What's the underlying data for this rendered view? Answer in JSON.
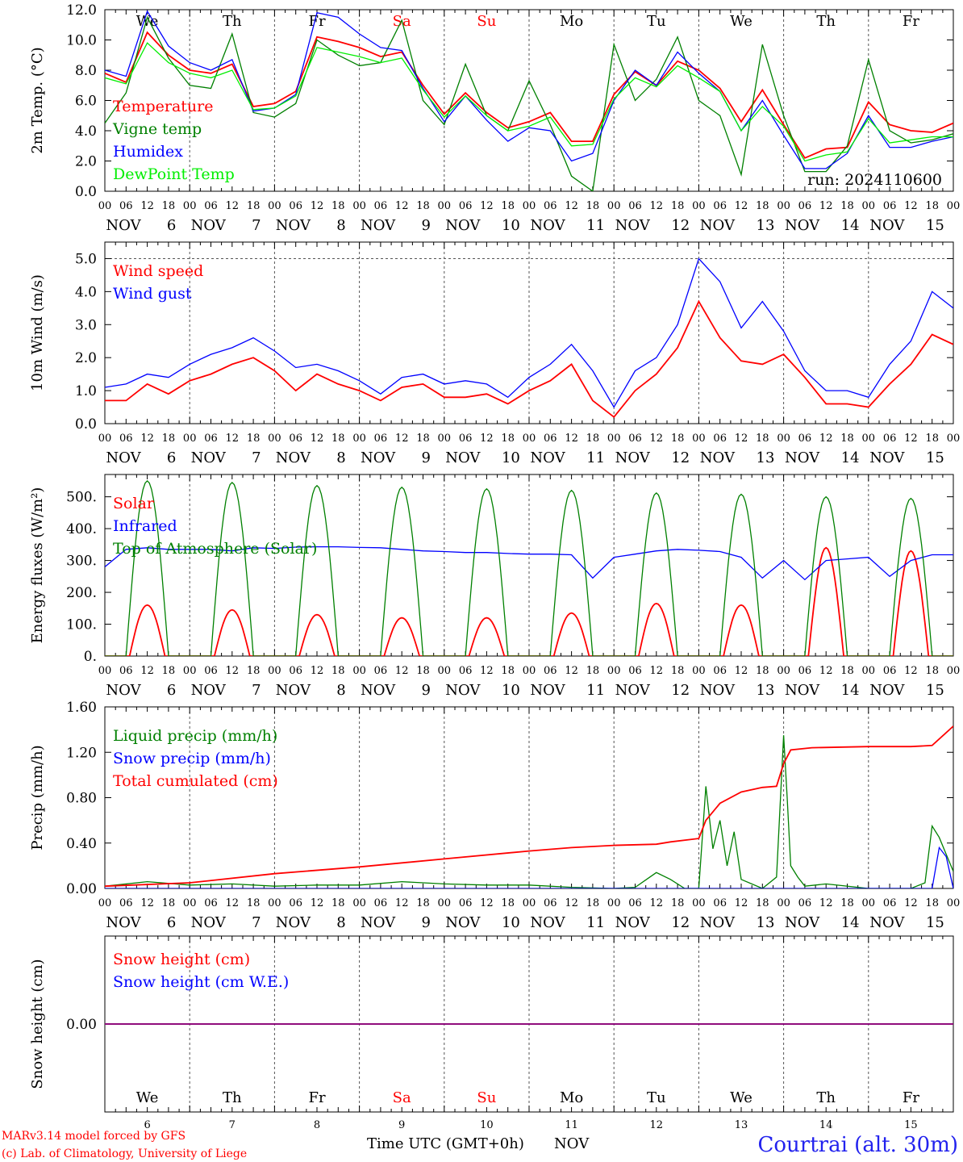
{
  "figure": {
    "credit_line1": "MARv3.14 model forced by GFS",
    "credit_line2": "(c) Lab. of Climatology, University of Liege",
    "time_axis_label": "Time UTC (GMT+0h)",
    "month_label": "NOV",
    "station": "Courtrai (alt. 30m)",
    "run_label": "run: 2024110600",
    "colors": {
      "red": "#ff0000",
      "green": "#008000",
      "blue": "#0000ff",
      "lightgreen": "#00ee00",
      "purple": "#800080",
      "grid": "#555555"
    }
  },
  "hour_ticks": [
    "00",
    "06",
    "12",
    "18"
  ],
  "end_tick": "00",
  "days": [
    {
      "num": "6",
      "dow": "We",
      "weekend": false
    },
    {
      "num": "7",
      "dow": "Th",
      "weekend": false
    },
    {
      "num": "8",
      "dow": "Fr",
      "weekend": false
    },
    {
      "num": "9",
      "dow": "Sa",
      "weekend": true
    },
    {
      "num": "10",
      "dow": "Su",
      "weekend": true
    },
    {
      "num": "11",
      "dow": "Mo",
      "weekend": false
    },
    {
      "num": "12",
      "dow": "Tu",
      "weekend": false
    },
    {
      "num": "13",
      "dow": "We",
      "weekend": false
    },
    {
      "num": "14",
      "dow": "Th",
      "weekend": false
    },
    {
      "num": "15",
      "dow": "Fr",
      "weekend": false
    }
  ],
  "chart_data": [
    {
      "type": "line",
      "ylabel": "2m Temp. (°C)",
      "ylim": [
        0,
        12
      ],
      "yticks": [
        "0.0",
        "2.0",
        "4.0",
        "6.0",
        "8.0",
        "10.0",
        "12.0"
      ],
      "x_unit": "hours since Nov 6 00 UTC",
      "show_day_names": true,
      "series": [
        {
          "name": "Temperature",
          "color": "red",
          "x": [
            0,
            6,
            12,
            18,
            24,
            30,
            36,
            42,
            48,
            54,
            60,
            66,
            72,
            78,
            84,
            90,
            96,
            102,
            108,
            114,
            120,
            126,
            132,
            138,
            144,
            150,
            156,
            162,
            168,
            174,
            180,
            186,
            192,
            198,
            204,
            210,
            216,
            222,
            228,
            234,
            240
          ],
          "y": [
            7.8,
            7.2,
            10.5,
            9.0,
            8.0,
            7.8,
            8.4,
            5.6,
            5.8,
            6.6,
            10.2,
            9.9,
            9.5,
            8.9,
            9.2,
            7.0,
            5.1,
            6.5,
            5.2,
            4.2,
            4.6,
            5.2,
            3.3,
            3.3,
            6.4,
            7.9,
            7.0,
            8.6,
            8.0,
            6.8,
            4.6,
            6.7,
            4.4,
            2.2,
            2.8,
            2.9,
            5.9,
            4.4,
            4.0,
            3.9,
            4.5
          ]
        },
        {
          "name": "Vigne temp",
          "color": "green",
          "x": [
            0,
            6,
            12,
            18,
            24,
            30,
            36,
            42,
            48,
            54,
            60,
            66,
            72,
            78,
            84,
            90,
            96,
            102,
            108,
            114,
            120,
            126,
            132,
            138,
            144,
            150,
            156,
            162,
            168,
            174,
            180,
            186,
            192,
            198,
            204,
            210,
            216,
            222,
            228,
            234,
            240
          ],
          "y": [
            4.5,
            6.5,
            11.5,
            8.8,
            7.0,
            6.8,
            10.4,
            5.2,
            4.9,
            5.8,
            10.0,
            9.0,
            8.3,
            8.5,
            11.3,
            6.0,
            4.4,
            8.4,
            5.0,
            4.0,
            7.3,
            4.4,
            1.0,
            0.0,
            9.7,
            6.0,
            7.4,
            10.2,
            6.0,
            5.0,
            1.1,
            9.7,
            5.0,
            1.3,
            1.3,
            3.0,
            8.7,
            4.0,
            3.2,
            3.4,
            3.8
          ]
        },
        {
          "name": "Humidex",
          "color": "blue",
          "x": [
            0,
            6,
            12,
            18,
            24,
            30,
            36,
            42,
            48,
            54,
            60,
            66,
            72,
            78,
            84,
            90,
            96,
            102,
            108,
            114,
            120,
            126,
            132,
            138,
            144,
            150,
            156,
            162,
            168,
            174,
            180,
            186,
            192,
            198,
            204,
            210,
            216,
            222,
            228,
            234,
            240
          ],
          "y": [
            8.0,
            7.6,
            11.9,
            9.6,
            8.5,
            8.0,
            8.7,
            5.3,
            5.5,
            6.4,
            11.8,
            11.5,
            10.4,
            9.5,
            9.3,
            6.8,
            4.6,
            6.3,
            4.7,
            3.3,
            4.2,
            4.0,
            2.0,
            2.5,
            6.0,
            8.0,
            7.0,
            9.2,
            7.8,
            6.6,
            4.0,
            6.0,
            3.7,
            1.5,
            1.5,
            2.5,
            5.0,
            2.9,
            2.9,
            3.3,
            3.6
          ]
        },
        {
          "name": "DewPoint Temp",
          "color": "lightgreen",
          "x": [
            0,
            6,
            12,
            18,
            24,
            30,
            36,
            42,
            48,
            54,
            60,
            66,
            72,
            78,
            84,
            90,
            96,
            102,
            108,
            114,
            120,
            126,
            132,
            138,
            144,
            150,
            156,
            162,
            168,
            174,
            180,
            186,
            192,
            198,
            204,
            210,
            216,
            222,
            228,
            234,
            240
          ],
          "y": [
            7.5,
            7.1,
            9.8,
            8.5,
            7.8,
            7.5,
            8.0,
            5.4,
            5.5,
            6.3,
            9.5,
            9.2,
            8.9,
            8.5,
            8.8,
            6.7,
            4.9,
            6.3,
            5.0,
            4.0,
            4.3,
            4.9,
            3.0,
            3.1,
            6.1,
            7.5,
            6.9,
            8.3,
            7.5,
            6.6,
            4.0,
            5.6,
            4.3,
            2.0,
            2.4,
            2.6,
            4.8,
            3.2,
            3.4,
            3.6,
            3.6
          ]
        }
      ]
    },
    {
      "type": "line",
      "ylabel": "10m Wind (m/s)",
      "ylim": [
        0,
        5.5
      ],
      "yticks": [
        "0.0",
        "1.0",
        "2.0",
        "3.0",
        "4.0",
        "5.0"
      ],
      "ref_line": 5.0,
      "show_day_names": false,
      "series": [
        {
          "name": "Wind speed",
          "color": "red",
          "x": [
            0,
            6,
            12,
            18,
            24,
            30,
            36,
            42,
            48,
            54,
            60,
            66,
            72,
            78,
            84,
            90,
            96,
            102,
            108,
            114,
            120,
            126,
            132,
            138,
            144,
            150,
            156,
            162,
            168,
            174,
            180,
            186,
            192,
            198,
            204,
            210,
            216,
            222,
            228,
            234,
            240
          ],
          "y": [
            0.7,
            0.7,
            1.2,
            0.9,
            1.3,
            1.5,
            1.8,
            2.0,
            1.6,
            1.0,
            1.5,
            1.2,
            1.0,
            0.7,
            1.1,
            1.2,
            0.8,
            0.8,
            0.9,
            0.6,
            1.0,
            1.3,
            1.8,
            0.7,
            0.2,
            1.0,
            1.5,
            2.3,
            3.7,
            2.6,
            1.9,
            1.8,
            2.1,
            1.4,
            0.6,
            0.6,
            0.5,
            1.2,
            1.8,
            2.7,
            2.4
          ]
        },
        {
          "name": "Wind gust",
          "color": "blue",
          "x": [
            0,
            6,
            12,
            18,
            24,
            30,
            36,
            42,
            48,
            54,
            60,
            66,
            72,
            78,
            84,
            90,
            96,
            102,
            108,
            114,
            120,
            126,
            132,
            138,
            144,
            150,
            156,
            162,
            168,
            174,
            180,
            186,
            192,
            198,
            204,
            210,
            216,
            222,
            228,
            234,
            240
          ],
          "y": [
            1.1,
            1.2,
            1.5,
            1.4,
            1.8,
            2.1,
            2.3,
            2.6,
            2.2,
            1.7,
            1.8,
            1.6,
            1.3,
            0.9,
            1.4,
            1.5,
            1.2,
            1.3,
            1.2,
            0.8,
            1.4,
            1.8,
            2.4,
            1.6,
            0.5,
            1.6,
            2.0,
            3.0,
            5.0,
            4.3,
            2.9,
            3.7,
            2.8,
            1.6,
            1.0,
            1.0,
            0.8,
            1.8,
            2.5,
            4.0,
            3.5
          ]
        }
      ]
    },
    {
      "type": "line",
      "ylabel": "Energy fluxes (W/m²)",
      "ylim": [
        0,
        570
      ],
      "yticks": [
        "0.",
        "100.",
        "200.",
        "300.",
        "400.",
        "500."
      ],
      "ytick_values": [
        0,
        100,
        200,
        300,
        400,
        500
      ],
      "show_day_names": false,
      "series": [
        {
          "name": "Solar",
          "color": "red",
          "shape": "daily_peak",
          "day_start_hour": 7,
          "day_end_hour": 17,
          "peaks": [
            160,
            145,
            130,
            120,
            120,
            135,
            165,
            160,
            340,
            330
          ]
        },
        {
          "name": "Infrared",
          "color": "blue",
          "x": [
            0,
            6,
            12,
            18,
            24,
            30,
            36,
            42,
            48,
            54,
            60,
            66,
            72,
            78,
            84,
            90,
            96,
            102,
            108,
            114,
            120,
            126,
            132,
            138,
            144,
            150,
            156,
            162,
            168,
            174,
            180,
            186,
            192,
            198,
            204,
            210,
            216,
            222,
            228,
            234,
            240
          ],
          "y": [
            280,
            335,
            340,
            335,
            335,
            335,
            330,
            340,
            338,
            342,
            343,
            343,
            341,
            340,
            335,
            330,
            328,
            325,
            325,
            322,
            320,
            320,
            318,
            245,
            310,
            320,
            330,
            335,
            332,
            328,
            310,
            245,
            300,
            240,
            300,
            305,
            310,
            250,
            300,
            318,
            318
          ]
        },
        {
          "name": "Top of Atmosphere (Solar)",
          "color": "green",
          "shape": "daily_peak",
          "day_start_hour": 6,
          "day_end_hour": 18,
          "peaks": [
            550,
            545,
            535,
            530,
            525,
            520,
            512,
            508,
            500,
            495
          ]
        }
      ]
    },
    {
      "type": "line",
      "ylabel": "Precip (mm/h)",
      "ylim": [
        0,
        1.6
      ],
      "yticks": [
        "0.00",
        "0.40",
        "0.80",
        "1.20",
        "1.60"
      ],
      "show_day_names": false,
      "series": [
        {
          "name": "Liquid precip (mm/h)",
          "color": "green",
          "x": [
            0,
            12,
            24,
            36,
            48,
            60,
            72,
            84,
            96,
            108,
            120,
            132,
            144,
            150,
            156,
            160,
            164,
            168,
            170,
            172,
            174,
            176,
            178,
            180,
            186,
            190,
            192,
            193,
            194,
            196,
            198,
            204,
            216,
            228,
            232,
            234,
            236,
            238,
            240
          ],
          "y": [
            0.02,
            0.06,
            0.03,
            0.04,
            0.02,
            0.03,
            0.03,
            0.06,
            0.04,
            0.03,
            0.03,
            0.01,
            0.0,
            0.01,
            0.14,
            0.08,
            0.0,
            0.0,
            0.9,
            0.35,
            0.6,
            0.2,
            0.5,
            0.08,
            0.0,
            0.1,
            1.35,
            0.8,
            0.2,
            0.1,
            0.02,
            0.04,
            0.0,
            0.0,
            0.05,
            0.55,
            0.45,
            0.3,
            0.15
          ]
        },
        {
          "name": "Snow precip (mm/h)",
          "color": "blue",
          "x": [
            0,
            100,
            200,
            234,
            236,
            238,
            240
          ],
          "y": [
            0.0,
            0.0,
            0.0,
            0.0,
            0.36,
            0.28,
            0.0
          ]
        },
        {
          "name": "Total cumulated (cm)",
          "color": "red",
          "x": [
            0,
            24,
            48,
            72,
            96,
            120,
            132,
            144,
            156,
            160,
            168,
            170,
            174,
            180,
            186,
            190,
            192,
            194,
            200,
            216,
            228,
            234,
            240
          ],
          "y": [
            0.02,
            0.05,
            0.13,
            0.19,
            0.26,
            0.33,
            0.36,
            0.38,
            0.39,
            0.41,
            0.44,
            0.6,
            0.75,
            0.85,
            0.89,
            0.9,
            1.1,
            1.22,
            1.24,
            1.25,
            1.25,
            1.26,
            1.43
          ]
        }
      ]
    },
    {
      "type": "line",
      "ylabel": "Snow height (cm)",
      "ylim": [
        -1,
        1
      ],
      "yticks": [
        "0.00"
      ],
      "ytick_values": [
        0
      ],
      "show_day_names": true,
      "day_names_low": true,
      "series": [
        {
          "name": "Snow height (cm)",
          "color": "red",
          "x": [
            0,
            240
          ],
          "y": [
            0,
            0
          ]
        },
        {
          "name": "Snow height (cm W.E.)",
          "color": "blue",
          "x": [
            0,
            240
          ],
          "y": [
            0,
            0
          ]
        }
      ]
    }
  ]
}
